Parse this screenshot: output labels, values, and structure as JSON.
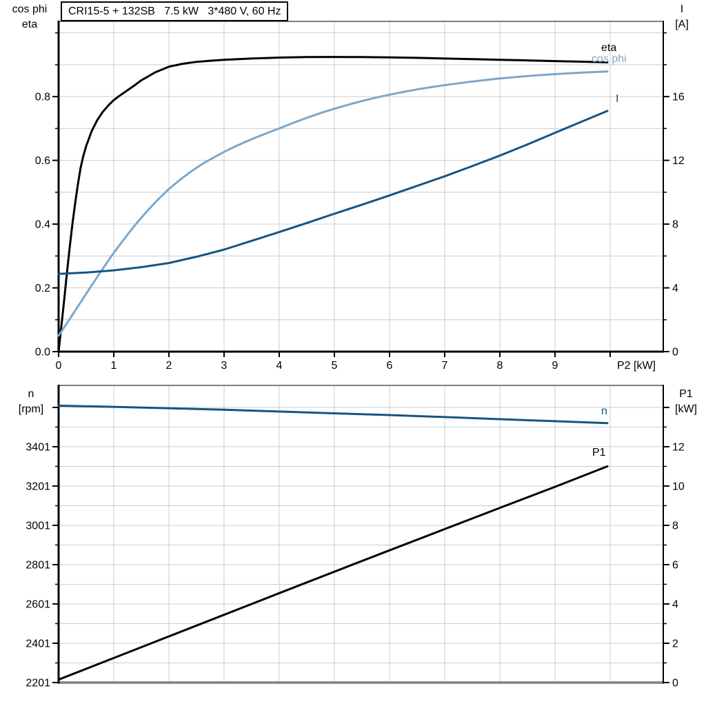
{
  "title_box": {
    "text": "CRI15-5 + 132SB   7.5 kW   3*480 V, 60 Hz"
  },
  "colors": {
    "black": "#000000",
    "dark_blue": "#175380",
    "light_blue": "#7ea6c9",
    "grid": "#cccccc",
    "frame_gray": "#7f7f7f"
  },
  "chart_data": [
    {
      "type": "line",
      "panel": "top",
      "xlabel": "P2 [kW]",
      "x_axis": {
        "min": 0,
        "max": 10.96,
        "ticks": [
          {
            "v": 0,
            "label": "0"
          },
          {
            "v": 1,
            "label": "1"
          },
          {
            "v": 2,
            "label": "2"
          },
          {
            "v": 3,
            "label": "3"
          },
          {
            "v": 4,
            "label": "4"
          },
          {
            "v": 5,
            "label": "5"
          },
          {
            "v": 6,
            "label": "6"
          },
          {
            "v": 7,
            "label": "7"
          },
          {
            "v": 8,
            "label": "8"
          },
          {
            "v": 9,
            "label": "9"
          },
          {
            "v": 10,
            "label": ""
          }
        ],
        "grid": [
          1,
          2,
          3,
          4,
          5,
          6,
          7,
          8,
          9,
          10
        ]
      },
      "left_axis": {
        "header": [
          "cos phi",
          "eta"
        ],
        "min": 0,
        "max": 1.036,
        "ticks": [
          {
            "v": 0,
            "label": "0.0"
          },
          {
            "v": 0.2,
            "label": "0.2"
          },
          {
            "v": 0.4,
            "label": "0.4"
          },
          {
            "v": 0.6,
            "label": "0.6"
          },
          {
            "v": 0.8,
            "label": "0.8"
          }
        ],
        "minor": [
          0.1,
          0.3,
          0.5,
          0.7,
          0.9,
          1.0
        ],
        "grid": [
          0.1,
          0.2,
          0.3,
          0.4,
          0.5,
          0.6,
          0.7,
          0.8,
          0.9,
          1.0
        ]
      },
      "right_axis": {
        "header": [
          "I",
          "[A]"
        ],
        "min": 0,
        "max": 20.72,
        "ticks": [
          {
            "v": 0,
            "label": "0"
          },
          {
            "v": 4,
            "label": "4"
          },
          {
            "v": 8,
            "label": "8"
          },
          {
            "v": 12,
            "label": "12"
          },
          {
            "v": 16,
            "label": "16"
          }
        ],
        "minor": [
          2,
          6,
          10,
          14,
          18,
          20
        ]
      },
      "series": [
        {
          "name": "eta",
          "label": "eta",
          "axis": "left",
          "color": "#000000",
          "points": [
            [
              0,
              0
            ],
            [
              0.05,
              0.08
            ],
            [
              0.1,
              0.16
            ],
            [
              0.15,
              0.245
            ],
            [
              0.2,
              0.325
            ],
            [
              0.25,
              0.4
            ],
            [
              0.3,
              0.465
            ],
            [
              0.35,
              0.525
            ],
            [
              0.4,
              0.578
            ],
            [
              0.45,
              0.615
            ],
            [
              0.5,
              0.645
            ],
            [
              0.6,
              0.692
            ],
            [
              0.7,
              0.726
            ],
            [
              0.8,
              0.752
            ],
            [
              0.9,
              0.772
            ],
            [
              1.0,
              0.789
            ],
            [
              1.1,
              0.802
            ],
            [
              1.2,
              0.814
            ],
            [
              1.35,
              0.832
            ],
            [
              1.5,
              0.851
            ],
            [
              1.75,
              0.876
            ],
            [
              2.0,
              0.894
            ],
            [
              2.25,
              0.903
            ],
            [
              2.5,
              0.909
            ],
            [
              2.75,
              0.9125
            ],
            [
              3.0,
              0.9155
            ],
            [
              3.5,
              0.9195
            ],
            [
              4.0,
              0.9225
            ],
            [
              4.5,
              0.924
            ],
            [
              5.0,
              0.9245
            ],
            [
              5.5,
              0.924
            ],
            [
              6.0,
              0.923
            ],
            [
              6.5,
              0.9215
            ],
            [
              7.0,
              0.9195
            ],
            [
              7.5,
              0.9175
            ],
            [
              8.0,
              0.9155
            ],
            [
              8.5,
              0.9135
            ],
            [
              9.0,
              0.9115
            ],
            [
              9.5,
              0.9095
            ],
            [
              9.95,
              0.9075
            ]
          ]
        },
        {
          "name": "cos-phi",
          "label": "cos phi",
          "axis": "left",
          "color": "#7ea6c9",
          "points": [
            [
              0,
              0.05
            ],
            [
              0.2,
              0.102
            ],
            [
              0.4,
              0.155
            ],
            [
              0.6,
              0.208
            ],
            [
              0.8,
              0.26
            ],
            [
              1.0,
              0.31
            ],
            [
              1.2,
              0.356
            ],
            [
              1.4,
              0.4
            ],
            [
              1.6,
              0.44
            ],
            [
              1.8,
              0.477
            ],
            [
              2.0,
              0.51
            ],
            [
              2.2,
              0.539
            ],
            [
              2.4,
              0.565
            ],
            [
              2.6,
              0.588
            ],
            [
              2.8,
              0.608
            ],
            [
              3.0,
              0.6265
            ],
            [
              3.2,
              0.6435
            ],
            [
              3.4,
              0.659
            ],
            [
              3.6,
              0.6735
            ],
            [
              3.8,
              0.687
            ],
            [
              4.0,
              0.7
            ],
            [
              4.25,
              0.7175
            ],
            [
              4.5,
              0.7335
            ],
            [
              4.75,
              0.7485
            ],
            [
              5.0,
              0.762
            ],
            [
              5.25,
              0.7745
            ],
            [
              5.5,
              0.786
            ],
            [
              5.75,
              0.7965
            ],
            [
              6.0,
              0.806
            ],
            [
              6.25,
              0.8145
            ],
            [
              6.5,
              0.8225
            ],
            [
              6.75,
              0.8295
            ],
            [
              7.0,
              0.836
            ],
            [
              7.5,
              0.8475
            ],
            [
              8.0,
              0.857
            ],
            [
              8.5,
              0.8645
            ],
            [
              9.0,
              0.8705
            ],
            [
              9.5,
              0.8755
            ],
            [
              9.95,
              0.879
            ]
          ]
        },
        {
          "name": "current",
          "label": "I",
          "axis": "right",
          "color": "#175380",
          "points": [
            [
              0,
              4.88
            ],
            [
              0.5,
              4.96
            ],
            [
              1.0,
              5.1
            ],
            [
              1.5,
              5.3
            ],
            [
              2.0,
              5.56
            ],
            [
              2.5,
              5.95
            ],
            [
              3.0,
              6.4
            ],
            [
              3.5,
              6.95
            ],
            [
              4.0,
              7.5
            ],
            [
              4.5,
              8.07
            ],
            [
              5.0,
              8.65
            ],
            [
              5.5,
              9.22
            ],
            [
              6.0,
              9.8
            ],
            [
              6.5,
              10.4
            ],
            [
              7.0,
              11.0
            ],
            [
              7.5,
              11.64
            ],
            [
              8.0,
              12.3
            ],
            [
              8.5,
              13.0
            ],
            [
              9.0,
              13.73
            ],
            [
              9.5,
              14.45
            ],
            [
              9.95,
              15.1
            ]
          ]
        }
      ]
    },
    {
      "type": "line",
      "panel": "bottom",
      "xlabel": "",
      "x_axis": {
        "min": 0,
        "max": 10.96,
        "ticks": [],
        "grid": [
          1,
          2,
          3,
          4,
          5,
          6,
          7,
          8,
          9,
          10
        ]
      },
      "left_axis": {
        "header": [
          "n",
          "[rpm]"
        ],
        "min": 2201,
        "max": 3713,
        "ticks": [
          {
            "v": 3401,
            "label": "3401"
          },
          {
            "v": 3201,
            "label": "3201"
          },
          {
            "v": 3001,
            "label": "3001"
          },
          {
            "v": 2801,
            "label": "2801"
          },
          {
            "v": 2601,
            "label": "2601"
          },
          {
            "v": 2401,
            "label": "2401"
          },
          {
            "v": 2201,
            "label": "2201"
          },
          {
            "v": 3601,
            "label": ""
          }
        ],
        "minor": [
          2301,
          2501,
          2701,
          2901,
          3101,
          3301,
          3501
        ],
        "grid": [
          2301,
          2401,
          2501,
          2601,
          2701,
          2801,
          2901,
          3001,
          3101,
          3201,
          3301,
          3401,
          3501,
          3601
        ]
      },
      "right_axis": {
        "header": [
          "P1",
          "[kW]"
        ],
        "min": 0,
        "max": 15.12,
        "ticks": [
          {
            "v": 0,
            "label": "0"
          },
          {
            "v": 2,
            "label": "2"
          },
          {
            "v": 4,
            "label": "4"
          },
          {
            "v": 6,
            "label": "6"
          },
          {
            "v": 8,
            "label": "8"
          },
          {
            "v": 10,
            "label": "10"
          },
          {
            "v": 12,
            "label": "12"
          },
          {
            "v": 14,
            "label": ""
          }
        ],
        "minor": [
          1,
          3,
          5,
          7,
          9,
          11,
          13
        ]
      },
      "series": [
        {
          "name": "n",
          "label": "n",
          "axis": "left",
          "color": "#175380",
          "points": [
            [
              0,
              3610
            ],
            [
              1,
              3604
            ],
            [
              2,
              3597
            ],
            [
              3,
              3589
            ],
            [
              4,
              3580
            ],
            [
              5,
              3571
            ],
            [
              6,
              3562
            ],
            [
              7,
              3552
            ],
            [
              8,
              3541
            ],
            [
              9,
              3531
            ],
            [
              9.95,
              3521
            ]
          ]
        },
        {
          "name": "p1",
          "label": "P1",
          "axis": "right",
          "color": "#000000",
          "points": [
            [
              0,
              0.15
            ],
            [
              1,
              1.25
            ],
            [
              2,
              2.35
            ],
            [
              3,
              3.45
            ],
            [
              4,
              4.55
            ],
            [
              5,
              5.64
            ],
            [
              6,
              6.73
            ],
            [
              7,
              7.81
            ],
            [
              8,
              8.89
            ],
            [
              9,
              9.96
            ],
            [
              9.95,
              11.0
            ]
          ]
        }
      ]
    }
  ]
}
